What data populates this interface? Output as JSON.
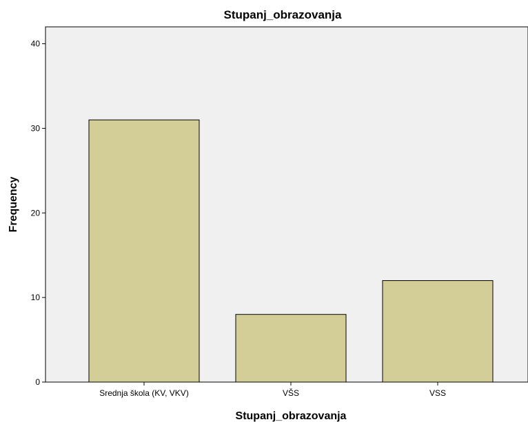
{
  "chart_data": {
    "type": "bar",
    "title": "Stupanj_obrazovanja",
    "xlabel": "Stupanj_obrazovanja",
    "ylabel": "Frequency",
    "categories": [
      "Srednja škola (KV, VKV)",
      "VŠS",
      "VSS"
    ],
    "values": [
      31,
      8,
      12
    ],
    "ylim": [
      0,
      42
    ],
    "yticks": [
      0,
      10,
      20,
      30,
      40
    ],
    "grid": false,
    "legend": "none",
    "colors": {
      "bar_fill": "#d3ce97",
      "bar_stroke": "#000000",
      "plot_background": "#f0f0f0",
      "axis": "#000000"
    }
  }
}
